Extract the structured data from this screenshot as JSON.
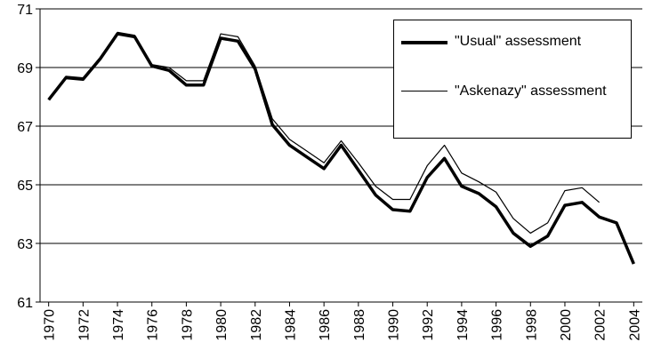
{
  "chart_data": {
    "type": "line",
    "x": [
      1970,
      1971,
      1972,
      1973,
      1974,
      1975,
      1976,
      1977,
      1978,
      1979,
      1980,
      1981,
      1982,
      1983,
      1984,
      1985,
      1986,
      1987,
      1988,
      1989,
      1990,
      1991,
      1992,
      1993,
      1994,
      1995,
      1996,
      1997,
      1998,
      1999,
      2000,
      2001,
      2002,
      2003,
      2004
    ],
    "series": [
      {
        "name": "\"Usual\" assessment",
        "color": "#000000",
        "values": [
          67.9,
          68.65,
          68.6,
          69.3,
          70.15,
          70.05,
          69.05,
          68.9,
          68.4,
          68.4,
          70.0,
          69.9,
          68.95,
          67.05,
          66.35,
          65.95,
          65.55,
          66.35,
          65.5,
          64.65,
          64.15,
          64.1,
          65.25,
          65.9,
          64.95,
          64.7,
          64.25,
          63.35,
          62.9,
          63.25,
          64.3,
          64.4,
          63.9,
          63.7,
          62.3
        ]
      },
      {
        "name": "\"Askenazy\" assessment",
        "color": "#000000",
        "values": [
          67.9,
          68.7,
          68.65,
          69.35,
          70.2,
          70.1,
          69.1,
          69.0,
          68.55,
          68.55,
          70.15,
          70.05,
          69.05,
          67.25,
          66.55,
          66.15,
          65.75,
          66.5,
          65.75,
          64.95,
          64.5,
          64.5,
          65.65,
          66.35,
          65.4,
          65.1,
          64.75,
          63.85,
          63.35,
          63.7,
          64.8,
          64.9,
          64.4,
          null,
          null
        ]
      }
    ],
    "xlim": [
      1969.5,
      2004.5
    ],
    "xticks": [
      1970,
      1972,
      1974,
      1976,
      1978,
      1980,
      1982,
      1984,
      1986,
      1988,
      1990,
      1992,
      1994,
      1996,
      1998,
      2000,
      2002,
      2004
    ],
    "ylim": [
      61,
      71
    ],
    "yticks": [
      61,
      63,
      65,
      67,
      69,
      71
    ],
    "grid": true,
    "legend": "top-right"
  }
}
